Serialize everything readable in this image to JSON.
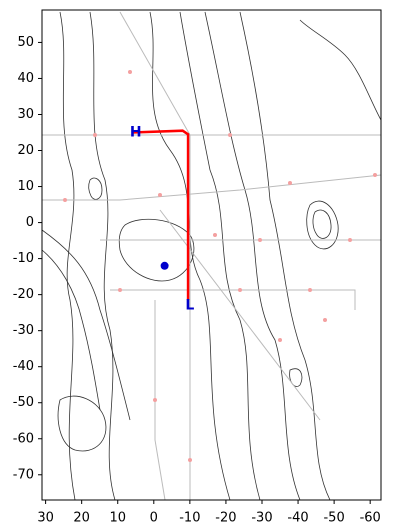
{
  "chart_data": {
    "type": "map",
    "xlim": [
      31,
      -63
    ],
    "ylim": [
      -77,
      59
    ],
    "xticks": [
      30,
      20,
      10,
      0,
      -10,
      -20,
      -30,
      -40,
      -50,
      -60
    ],
    "yticks": [
      50,
      40,
      30,
      20,
      10,
      0,
      -10,
      -20,
      -30,
      -40,
      -50,
      -60,
      -70
    ],
    "series": [
      {
        "kind": "line",
        "color": "#ff0000",
        "x": [
          6,
          -8,
          -9.5,
          -9.5
        ],
        "y": [
          25,
          25.5,
          24.5,
          -21.5
        ]
      },
      {
        "kind": "point",
        "color": "#0000cc",
        "x": [
          -3
        ],
        "y": [
          -12
        ]
      }
    ],
    "annotations": [
      {
        "text": "H",
        "x": 5,
        "y": 25,
        "color": "#0000cc"
      },
      {
        "text": "L",
        "x": -10,
        "y": -23,
        "color": "#0000cc"
      }
    ]
  }
}
